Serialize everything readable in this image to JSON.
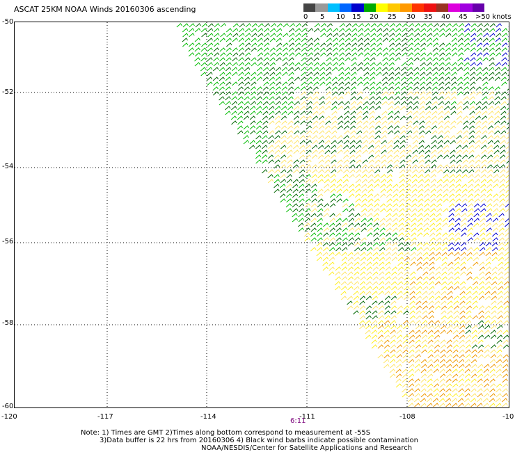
{
  "title": "ASCAT 25KM NOAA Winds 20160306 ascending",
  "colorbar": {
    "labels": [
      "0",
      "5",
      "10",
      "15",
      "20",
      "25",
      "30",
      "35",
      "40",
      "45",
      ">50 knots"
    ],
    "colors": [
      "#444444",
      "#999999",
      "#00bfff",
      "#0066ff",
      "#0000cc",
      "#00aa00",
      "#ffff00",
      "#ffc800",
      "#ff9900",
      "#ff3300",
      "#ee1111",
      "#993322",
      "#dd00dd",
      "#a000e0",
      "#6600aa"
    ]
  },
  "map": {
    "lat_labels": [
      "-50",
      "-52",
      "-54",
      "-56",
      "-58",
      "-60"
    ],
    "lon_labels": [
      "-120",
      "-117",
      "-114",
      "-111",
      "-108",
      "-10"
    ],
    "time_label": "6:11",
    "wind_colors": {
      "green": "#00bb00",
      "dark_green": "#006600",
      "blue": "#0000cc",
      "yellow": "#ffee22",
      "light_yellow": "#ffe566",
      "orange": "#ee9900",
      "brown": "#b05500"
    }
  },
  "notes": [
    "Note: 1) Times are GMT 2)Times along bottom correspond to measurement at -55S",
    "3)Data buffer is 22 hrs from 20160306 4) Black wind barbs indicate possible contamination",
    "NOAA/NESDIS/Center for Satellite Applications and Research"
  ]
}
